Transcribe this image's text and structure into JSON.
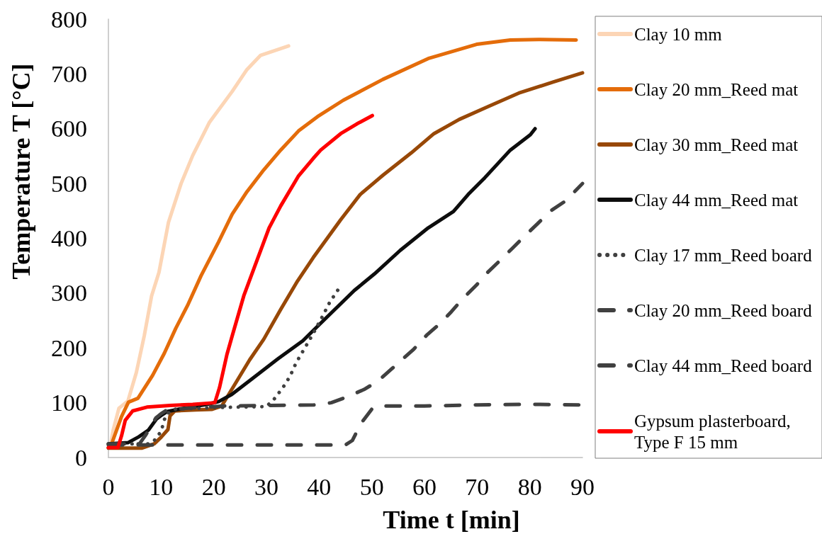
{
  "chart_data": {
    "type": "line",
    "xlabel": "Time t [min]",
    "ylabel": "Temperature T [°C]",
    "xlim": [
      0,
      90
    ],
    "xticks": [
      0,
      10,
      20,
      30,
      40,
      50,
      60,
      70,
      80,
      90
    ],
    "ylim": [
      0,
      800
    ],
    "yticks": [
      0,
      100,
      200,
      300,
      400,
      500,
      600,
      700,
      800
    ],
    "grid": false,
    "legend": "right",
    "line_style": "solid",
    "series": [
      {
        "name": "Clay 10 mm",
        "color": "#fcd5b5",
        "x": [
          0,
          0.5,
          0.9,
          2.0,
          3.7,
          5.3,
          6.8,
          8.2,
          9.6,
          11.4,
          13.8,
          16.0,
          19.2,
          23.5,
          26.3,
          28.9,
          31.1,
          34.2
        ],
        "values": [
          18,
          28,
          50,
          90,
          103,
          155,
          222,
          295,
          338,
          429,
          500,
          551,
          612,
          668,
          708,
          734,
          741,
          751
        ]
      },
      {
        "name": "Clay 20 mm_Reed mat",
        "color": "#e46c0a",
        "x": [
          0,
          0.5,
          2.5,
          3.8,
          5.6,
          8.4,
          10.6,
          12.8,
          15.0,
          17.6,
          20.9,
          23.5,
          26.3,
          29.5,
          32.7,
          36.1,
          39.7,
          44.6,
          52.1,
          60.7,
          69.9,
          76.3,
          81.7,
          88.8
        ],
        "values": [
          18,
          22,
          75,
          101,
          108,
          150,
          190,
          236,
          277,
          332,
          393,
          444,
          485,
          525,
          561,
          596,
          622,
          652,
          690,
          728,
          754,
          762,
          763,
          762
        ]
      },
      {
        "name": "Clay 30 mm_Reed mat",
        "color": "#984807",
        "x": [
          0,
          6.3,
          8.7,
          10.0,
          11.3,
          11.7,
          12.6,
          16.6,
          19.7,
          21.5,
          24.1,
          26.8,
          29.5,
          32.7,
          35.9,
          38.9,
          44.1,
          47.8,
          52.1,
          57.5,
          61.8,
          66.6,
          72.0,
          77.9,
          84.4,
          90.0
        ],
        "values": [
          17,
          17,
          25,
          37,
          51,
          76,
          85,
          87,
          88,
          94,
          135,
          178,
          216,
          270,
          322,
          365,
          434,
          480,
          515,
          556,
          591,
          617,
          640,
          665,
          685,
          702
        ]
      },
      {
        "name": "Clay 44 mm_Reed mat",
        "color": "#0d0d0d",
        "x": [
          0,
          3.7,
          5.8,
          7.6,
          9.1,
          9.9,
          11.2,
          14.4,
          18.7,
          20.9,
          23.4,
          26.9,
          32.3,
          36.9,
          38.7,
          46.7,
          50.5,
          55.4,
          60.7,
          65.5,
          68.3,
          71.4,
          76.3,
          80.1,
          81.0
        ],
        "values": [
          25,
          27,
          38,
          50,
          70,
          76,
          84,
          90,
          97,
          102,
          115,
          141,
          181,
          213,
          230,
          305,
          335,
          378,
          419,
          449,
          480,
          510,
          561,
          589,
          600
        ]
      },
      {
        "name": "Clay 17 mm_Reed board",
        "color": "#404040",
        "line_style": "dotted",
        "x": [
          0,
          7.5,
          8.7,
          10.1,
          10.4,
          11.0,
          12.5,
          20.0,
          30.0,
          31.5,
          32.6,
          33.6,
          34.6,
          35.5,
          36.3,
          37.3,
          38.8,
          40.5,
          42.0,
          44.0
        ],
        "values": [
          25,
          25,
          31,
          49,
          63,
          79,
          88,
          91,
          93,
          107,
          121,
          134,
          151,
          170,
          184,
          200,
          225,
          255,
          283,
          312
        ]
      },
      {
        "name": "Clay 20 mm_Reed board",
        "color": "#404040",
        "line_style": "dashed",
        "x": [
          0,
          5.9,
          7.0,
          8.0,
          9.0,
          10.0,
          11.0,
          15.0,
          22.0,
          30.0,
          39.0,
          42.3,
          45.4,
          48.5,
          51.1,
          53.8,
          58.0,
          60.4,
          62.9,
          65.1,
          67.2,
          69.9,
          72.0,
          74.4,
          76.6,
          79.0,
          81.4,
          83.8,
          86.6,
          89.2,
          90.0
        ],
        "values": [
          25,
          25,
          40,
          55,
          72,
          80,
          86,
          90,
          94,
          95,
          96,
          100,
          111,
          124,
          139,
          162,
          198,
          223,
          244,
          266,
          289,
          315,
          338,
          360,
          381,
          404,
          426,
          449,
          467,
          492,
          500
        ]
      },
      {
        "name": "Clay 44 mm_Reed board",
        "color": "#404040",
        "line_style": "dashed",
        "x": [
          0,
          45.0,
          46.3,
          48.0,
          50.3,
          52.0,
          60.0,
          70.0,
          80.0,
          90.0
        ],
        "values": [
          23,
          23,
          31,
          63,
          92,
          94,
          94,
          96,
          97,
          96
        ]
      },
      {
        "name": "Gypsum plasterboard, Type F 15 mm",
        "color": "#ff0000",
        "x": [
          0,
          1.8,
          2.5,
          3.2,
          4.6,
          7.3,
          11.7,
          16.0,
          20.2,
          21.1,
          22.5,
          23.5,
          25.7,
          27.9,
          30.5,
          32.7,
          36.1,
          38.9,
          40.3,
          44.1,
          47.2,
          50.1
        ],
        "values": [
          18,
          18,
          40,
          68,
          85,
          92,
          95,
          97,
          100,
          128,
          188,
          222,
          295,
          352,
          419,
          459,
          514,
          546,
          561,
          591,
          609,
          624
        ]
      }
    ]
  }
}
